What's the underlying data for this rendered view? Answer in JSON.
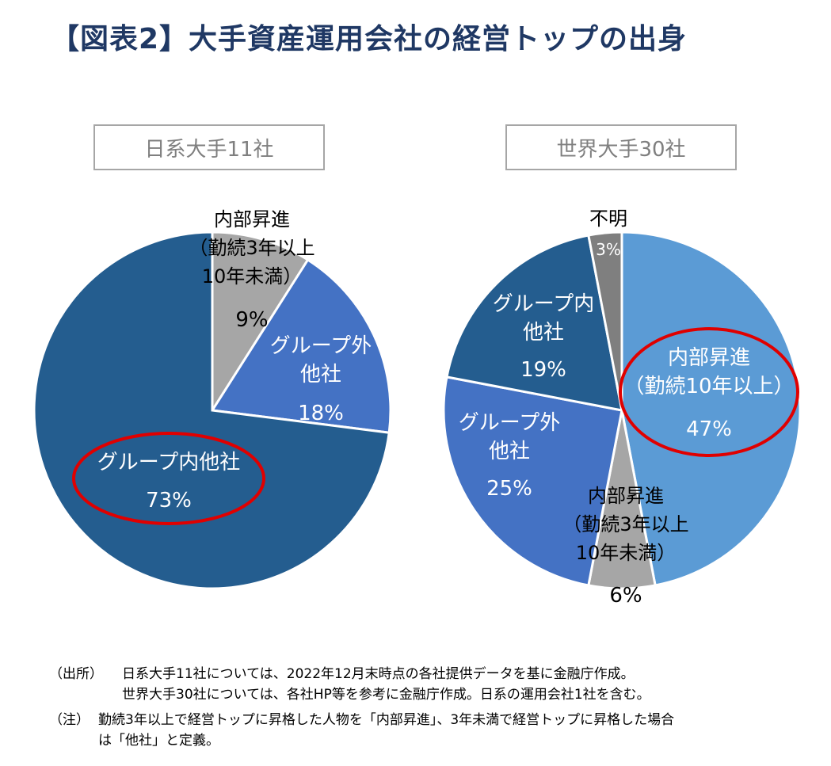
{
  "title": "【図表2】大手資産運用会社の経営トップの出身",
  "colors": {
    "dark_blue": "#245d8f",
    "mid_blue": "#4472c4",
    "light_blue": "#5b9bd5",
    "gray": "#a6a6a6",
    "dark_gray": "#7f7f7f",
    "highlight_red": "#e00000"
  },
  "chart_data": [
    {
      "type": "pie",
      "title": "日系大手11社",
      "slices": [
        {
          "label_lines": [
            "内部昇進",
            "（勤続3年以上",
            "10年未満）"
          ],
          "value": 9,
          "value_label": "9%",
          "color": "#a6a6a6"
        },
        {
          "label_lines": [
            "グループ外",
            "他社"
          ],
          "value": 18,
          "value_label": "18%",
          "color": "#4472c4"
        },
        {
          "label_lines": [
            "グループ内他社"
          ],
          "value": 73,
          "value_label": "73%",
          "color": "#245d8f",
          "highlighted": true
        }
      ]
    },
    {
      "type": "pie",
      "title": "世界大手30社",
      "slices": [
        {
          "label_lines": [
            "内部昇進",
            "（勤続10年以上）"
          ],
          "value": 47,
          "value_label": "47%",
          "color": "#5b9bd5",
          "highlighted": true
        },
        {
          "label_lines": [
            "内部昇進",
            "（勤続3年以上",
            "10年未満）"
          ],
          "value": 6,
          "value_label": "6%",
          "color": "#a6a6a6"
        },
        {
          "label_lines": [
            "グループ外",
            "他社"
          ],
          "value": 25,
          "value_label": "25%",
          "color": "#4472c4"
        },
        {
          "label_lines": [
            "グループ内",
            "他社"
          ],
          "value": 19,
          "value_label": "19%",
          "color": "#245d8f"
        },
        {
          "label_lines": [
            "不明"
          ],
          "value": 3,
          "value_label": "3%",
          "color": "#7f7f7f"
        }
      ]
    }
  ],
  "notes": {
    "source_tag": "（出所）",
    "source_line1": "日系大手11社については、2022年12月末時点の各社提供データを基に金融庁作成。",
    "source_line2": "世界大手30社については、各社HP等を参考に金融庁作成。日系の運用会社1社を含む。",
    "note_tag": "（注）",
    "note_line1": "勤続3年以上で経営トップに昇格した人物を「内部昇進」、3年未満で経営トップに昇格した場合",
    "note_line2": "は「他社」と定義。"
  }
}
